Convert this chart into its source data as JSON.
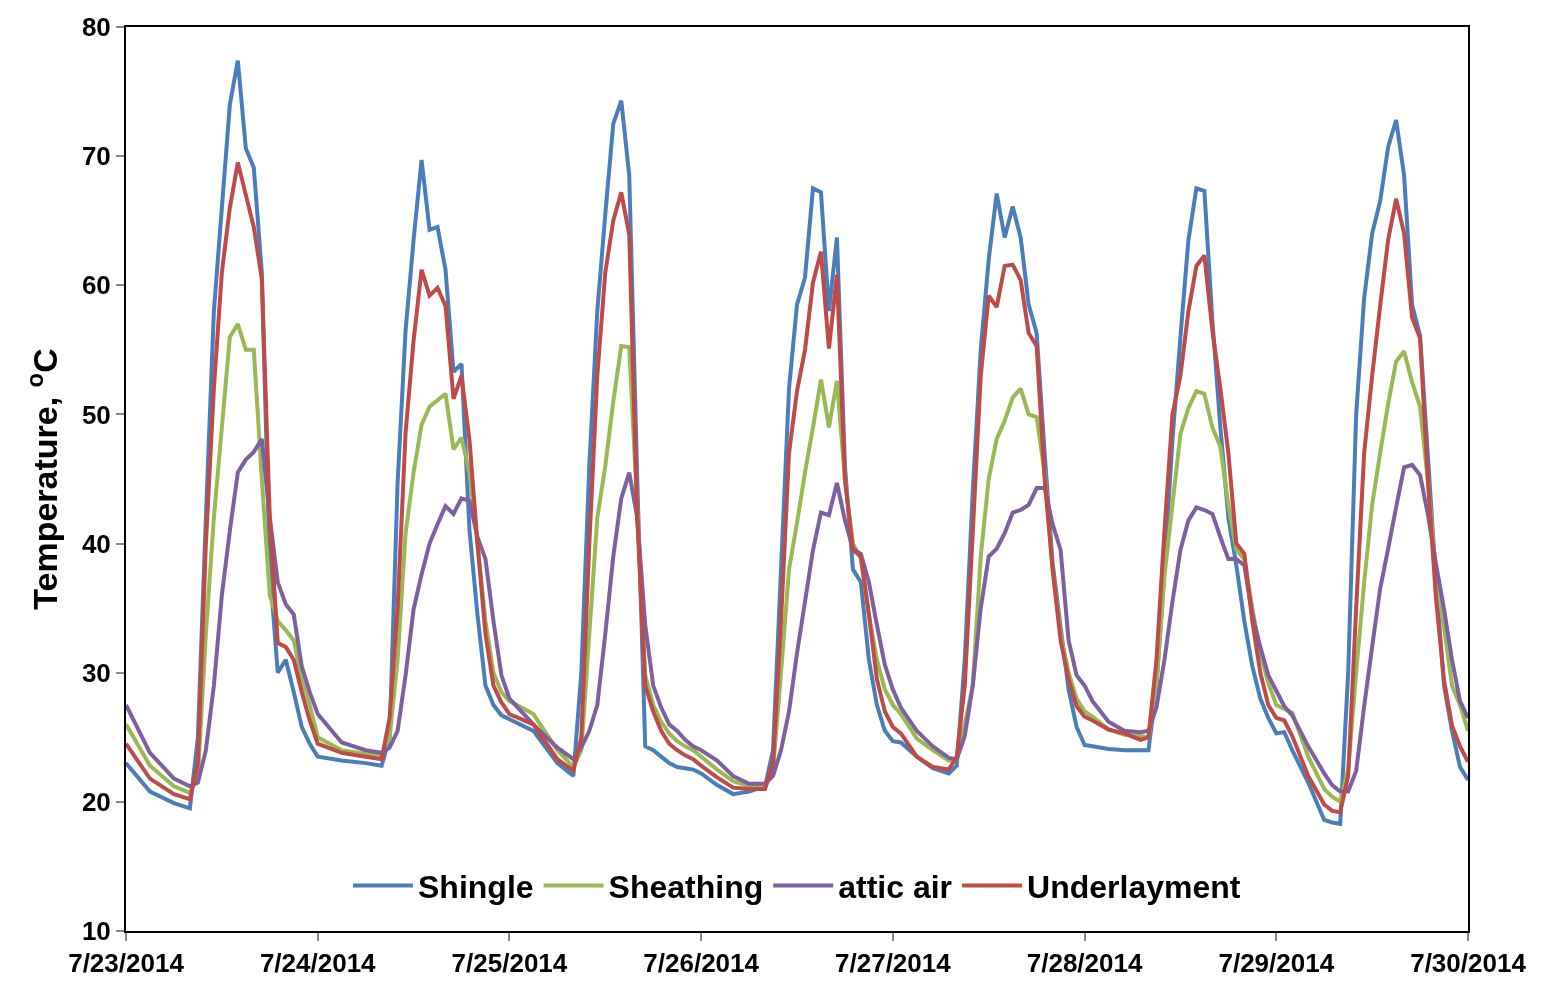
{
  "chart_data": {
    "type": "line",
    "ylabel": "Temperature, $^{o}$C",
    "x": [
      "2014-07-23T00:00",
      "2014-07-23T03:00",
      "2014-07-23T06:00",
      "2014-07-23T08:00",
      "2014-07-23T09:00",
      "2014-07-23T10:00",
      "2014-07-23T11:00",
      "2014-07-23T12:00",
      "2014-07-23T13:00",
      "2014-07-23T14:00",
      "2014-07-23T15:00",
      "2014-07-23T16:00",
      "2014-07-23T17:00",
      "2014-07-23T18:00",
      "2014-07-23T19:00",
      "2014-07-23T20:00",
      "2014-07-23T21:00",
      "2014-07-23T22:00",
      "2014-07-23T23:00",
      "2014-07-24T00:00",
      "2014-07-24T03:00",
      "2014-07-24T06:00",
      "2014-07-24T08:00",
      "2014-07-24T09:00",
      "2014-07-24T10:00",
      "2014-07-24T11:00",
      "2014-07-24T12:00",
      "2014-07-24T13:00",
      "2014-07-24T14:00",
      "2014-07-24T15:00",
      "2014-07-24T16:00",
      "2014-07-24T17:00",
      "2014-07-24T18:00",
      "2014-07-24T19:00",
      "2014-07-24T20:00",
      "2014-07-24T21:00",
      "2014-07-24T22:00",
      "2014-07-24T23:00",
      "2014-07-25T00:00",
      "2014-07-25T03:00",
      "2014-07-25T06:00",
      "2014-07-25T08:00",
      "2014-07-25T09:00",
      "2014-07-25T10:00",
      "2014-07-25T11:00",
      "2014-07-25T12:00",
      "2014-07-25T13:00",
      "2014-07-25T14:00",
      "2014-07-25T15:00",
      "2014-07-25T16:00",
      "2014-07-25T17:00",
      "2014-07-25T18:00",
      "2014-07-25T19:00",
      "2014-07-25T20:00",
      "2014-07-25T21:00",
      "2014-07-25T22:00",
      "2014-07-25T23:00",
      "2014-07-26T00:00",
      "2014-07-26T02:00",
      "2014-07-26T04:00",
      "2014-07-26T06:00",
      "2014-07-26T08:00",
      "2014-07-26T09:00",
      "2014-07-26T10:00",
      "2014-07-26T11:00",
      "2014-07-26T12:00",
      "2014-07-26T13:00",
      "2014-07-26T14:00",
      "2014-07-26T15:00",
      "2014-07-26T16:00",
      "2014-07-26T17:00",
      "2014-07-26T18:00",
      "2014-07-26T19:00",
      "2014-07-26T20:00",
      "2014-07-26T21:00",
      "2014-07-26T22:00",
      "2014-07-26T23:00",
      "2014-07-27T00:00",
      "2014-07-27T01:00",
      "2014-07-27T03:00",
      "2014-07-27T05:00",
      "2014-07-27T07:00",
      "2014-07-27T08:00",
      "2014-07-27T09:00",
      "2014-07-27T10:00",
      "2014-07-27T11:00",
      "2014-07-27T12:00",
      "2014-07-27T13:00",
      "2014-07-27T14:00",
      "2014-07-27T15:00",
      "2014-07-27T16:00",
      "2014-07-27T17:00",
      "2014-07-27T18:00",
      "2014-07-27T19:00",
      "2014-07-27T20:00",
      "2014-07-27T21:00",
      "2014-07-27T22:00",
      "2014-07-27T23:00",
      "2014-07-28T00:00",
      "2014-07-28T01:00",
      "2014-07-28T03:00",
      "2014-07-28T05:00",
      "2014-07-28T07:00",
      "2014-07-28T08:00",
      "2014-07-28T09:00",
      "2014-07-28T10:00",
      "2014-07-28T11:00",
      "2014-07-28T12:00",
      "2014-07-28T13:00",
      "2014-07-28T14:00",
      "2014-07-28T15:00",
      "2014-07-28T16:00",
      "2014-07-28T17:00",
      "2014-07-28T18:00",
      "2014-07-28T19:00",
      "2014-07-28T20:00",
      "2014-07-28T21:00",
      "2014-07-28T22:00",
      "2014-07-28T23:00",
      "2014-07-29T00:00",
      "2014-07-29T01:00",
      "2014-07-29T02:00",
      "2014-07-29T04:00",
      "2014-07-29T06:00",
      "2014-07-29T07:00",
      "2014-07-29T08:00",
      "2014-07-29T09:00",
      "2014-07-29T10:00",
      "2014-07-29T11:00",
      "2014-07-29T12:00",
      "2014-07-29T13:00",
      "2014-07-29T14:00",
      "2014-07-29T15:00",
      "2014-07-29T16:00",
      "2014-07-29T17:00",
      "2014-07-29T18:00",
      "2014-07-29T19:00",
      "2014-07-29T20:00",
      "2014-07-29T21:00",
      "2014-07-29T22:00",
      "2014-07-29T23:00",
      "2014-07-30T00:00"
    ],
    "series": [
      {
        "name": "Shingle",
        "color": "#4a7ebb",
        "values": [
          23.0,
          20.8,
          19.9,
          19.5,
          25,
          42,
          58,
          66,
          74,
          77.4,
          70.6,
          69.1,
          61,
          38,
          30,
          31,
          28.5,
          25.8,
          24.5,
          23.5,
          23.2,
          23.0,
          22.8,
          25,
          44.7,
          56.5,
          63.5,
          69.7,
          64.3,
          64.5,
          61.2,
          53.3,
          53.9,
          41,
          34.5,
          29,
          27.5,
          26.7,
          26.4,
          25.5,
          23.0,
          22.0,
          30,
          46,
          58,
          65.5,
          72.5,
          74.3,
          68.5,
          45,
          24.3,
          24.0,
          23.5,
          23.0,
          22.7,
          22.6,
          22.5,
          22.2,
          21.3,
          20.6,
          20.8,
          21.2,
          24,
          38,
          52,
          58.5,
          60.6,
          67.5,
          67.2,
          58,
          63.7,
          46,
          38,
          37,
          31,
          27.5,
          25.5,
          24.7,
          24.6,
          23.5,
          22.6,
          22.2,
          22.8,
          31,
          44,
          55,
          62,
          67.1,
          63.7,
          66.1,
          63.7,
          58.5,
          56.3,
          47,
          38.5,
          33.5,
          28.7,
          25.8,
          24.4,
          24.3,
          24.1,
          24.0,
          24.0,
          24.0,
          29,
          38,
          48,
          56,
          63.5,
          67.5,
          67.3,
          57.3,
          49,
          42,
          38.3,
          34,
          30.5,
          28,
          26.5,
          25.3,
          25.4,
          24.0,
          21.5,
          18.6,
          18.4,
          18.3,
          30,
          50,
          59,
          64,
          66.5,
          70.7,
          72.8,
          68.5,
          58.5,
          56.1,
          46.6,
          37,
          29,
          25.5,
          22.7,
          21.7
        ]
      },
      {
        "name": "Sheathing",
        "color": "#98b954",
        "values": [
          26,
          22.8,
          21.2,
          20.7,
          22,
          33,
          42,
          49,
          56,
          57,
          55,
          55,
          45,
          36,
          34,
          33.3,
          32.5,
          29.5,
          27.5,
          25,
          24.0,
          23.7,
          23.6,
          25,
          31,
          40.8,
          45.5,
          49.2,
          50.6,
          51.1,
          51.6,
          47.3,
          48.2,
          45.5,
          40,
          34,
          30,
          28.5,
          27.8,
          26.8,
          24,
          22.7,
          24,
          33,
          42,
          46,
          51,
          55.3,
          55.2,
          42.7,
          29.8,
          27.5,
          26.2,
          25.3,
          24.7,
          24.3,
          24,
          23.5,
          22.5,
          21.6,
          21.2,
          21.2,
          22.5,
          30,
          38,
          41.6,
          45.5,
          49,
          52.7,
          49,
          52.6,
          45,
          40,
          38.8,
          34.5,
          31,
          28.7,
          27.5,
          26.8,
          24.9,
          24,
          23.2,
          23.3,
          26,
          29,
          39,
          45,
          48.1,
          49.5,
          51.3,
          52.0,
          50,
          49.8,
          45.5,
          38,
          33,
          30,
          28,
          27,
          26.6,
          25.6,
          25.2,
          25.1,
          25.0,
          29,
          37.5,
          43,
          48.5,
          50.5,
          51.8,
          51.6,
          49,
          47.5,
          43,
          39.5,
          38.8,
          35,
          31.5,
          29.2,
          27.5,
          27.2,
          26.9,
          23.5,
          21,
          20.4,
          20.0,
          22.5,
          30,
          37,
          43,
          47,
          50.8,
          54.1,
          54.9,
          52.5,
          50.6,
          44.7,
          37.6,
          33.5,
          29,
          27.5,
          25.5
        ]
      },
      {
        "name": "attic air",
        "color": "#7d60a0",
        "values": [
          27.5,
          23.8,
          21.8,
          21.2,
          21.5,
          24,
          29,
          36,
          41,
          45.5,
          46.5,
          47.1,
          48.1,
          42,
          37,
          35.3,
          34.5,
          30.5,
          28.5,
          26.8,
          24.6,
          24.0,
          23.8,
          24.2,
          25.5,
          29.8,
          34.9,
          37.6,
          40,
          41.5,
          42.9,
          42.3,
          43.5,
          43.3,
          40.5,
          38.8,
          34,
          29.8,
          28,
          26,
          24.2,
          23.3,
          24.2,
          25.5,
          27.5,
          33,
          39,
          43.5,
          45.5,
          42,
          33.7,
          29,
          27.3,
          26,
          25.5,
          24.8,
          24.3,
          24,
          23.2,
          22,
          21.4,
          21.4,
          22,
          24,
          27,
          31.5,
          35.5,
          39.5,
          42.4,
          42.2,
          44.7,
          41.8,
          39.6,
          39.2,
          37,
          33.7,
          30.6,
          28.7,
          27.3,
          25.5,
          24.3,
          23.4,
          23.3,
          25.1,
          29,
          35,
          39,
          39.6,
          40.8,
          42.4,
          42.6,
          43,
          44.3,
          44.3,
          41.5,
          39.5,
          32.5,
          29.8,
          29,
          27.8,
          26.2,
          25.5,
          25.4,
          25.5,
          27.3,
          31,
          35.5,
          39.5,
          41.8,
          42.8,
          42.6,
          42.3,
          40.5,
          38.8,
          38.8,
          38.3,
          34.5,
          32,
          29.8,
          28.6,
          27.4,
          26.7,
          24.3,
          22.2,
          21.3,
          20.8,
          20.8,
          22.4,
          27.4,
          32,
          36.5,
          39.6,
          42.8,
          45.9,
          46.1,
          45.3,
          42.2,
          38.4,
          34.9,
          31,
          27.8,
          26.5
        ]
      },
      {
        "name": "Underlayment",
        "color": "#be4b48",
        "values": [
          24.5,
          21.8,
          20.6,
          20.2,
          23,
          40,
          52,
          61,
          66,
          69.5,
          67,
          64.5,
          60.5,
          42,
          32.3,
          32,
          31,
          28.5,
          26.3,
          24.5,
          23.8,
          23.5,
          23.3,
          26.5,
          35,
          48.6,
          55.7,
          61.2,
          59.2,
          59.8,
          58.4,
          51.2,
          53,
          48,
          40,
          33,
          29,
          27.7,
          26.8,
          26,
          23.3,
          22.4,
          25,
          40,
          53,
          61,
          65,
          67.2,
          63.9,
          42,
          29,
          27,
          25.5,
          24.5,
          24,
          23.6,
          23.3,
          22.8,
          21.9,
          21.1,
          21.0,
          21.0,
          23,
          34,
          47,
          51.8,
          55,
          60.2,
          62.6,
          55.1,
          60.8,
          45,
          39.5,
          39,
          34.5,
          29.5,
          27,
          25.8,
          25.3,
          23.5,
          22.7,
          22.5,
          23.5,
          29,
          40.8,
          53,
          59.2,
          58.3,
          61.5,
          61.6,
          60.4,
          56.3,
          55.3,
          45,
          38,
          32.5,
          29.5,
          27.4,
          26.6,
          26.3,
          25.6,
          25.3,
          24.8,
          25.0,
          31,
          41,
          50,
          53,
          58,
          61.5,
          62.3,
          56.5,
          52,
          47,
          40,
          39.2,
          34,
          30,
          27.5,
          26.5,
          26.3,
          25.1,
          22,
          19.8,
          19.3,
          19.2,
          22,
          35,
          47,
          53,
          58.4,
          63.5,
          66.7,
          64,
          57.5,
          55.9,
          44.7,
          35.7,
          29.4,
          25.9,
          24.3,
          23.1
        ]
      }
    ],
    "xlim": [
      "2014-07-23",
      "2014-07-30"
    ],
    "xticks": [
      {
        "value": "2014-07-23",
        "label": "7/23/2014"
      },
      {
        "value": "2014-07-24",
        "label": "7/24/2014"
      },
      {
        "value": "2014-07-25",
        "label": "7/25/2014"
      },
      {
        "value": "2014-07-26",
        "label": "7/26/2014"
      },
      {
        "value": "2014-07-27",
        "label": "7/27/2014"
      },
      {
        "value": "2014-07-28",
        "label": "7/28/2014"
      },
      {
        "value": "2014-07-29",
        "label": "7/29/2014"
      },
      {
        "value": "2014-07-30",
        "label": "7/30/2014"
      }
    ],
    "ylim": [
      10,
      80
    ],
    "yticks": [
      10,
      20,
      30,
      40,
      50,
      60,
      70,
      80
    ],
    "grid": false,
    "legend": "bottom",
    "marker": "none",
    "line_style": "solid"
  }
}
